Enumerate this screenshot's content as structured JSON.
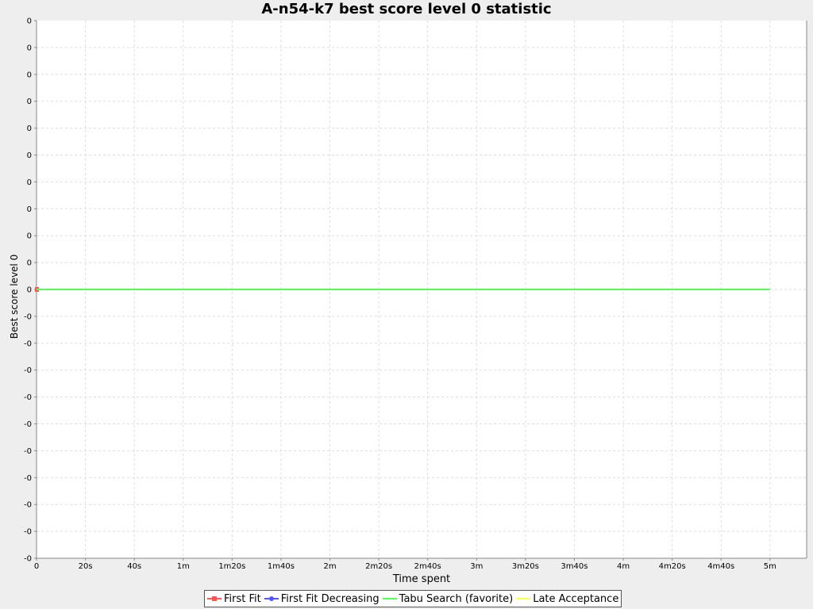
{
  "chart_data": {
    "type": "line",
    "title": "A-n54-k7 best score level 0 statistic",
    "xlabel": "Time spent",
    "ylabel": "Best score level 0",
    "x_ticks": [
      {
        "value": 0,
        "label": "0"
      },
      {
        "value": 20,
        "label": "20s"
      },
      {
        "value": 40,
        "label": "40s"
      },
      {
        "value": 60,
        "label": "1m"
      },
      {
        "value": 80,
        "label": "1m20s"
      },
      {
        "value": 100,
        "label": "1m40s"
      },
      {
        "value": 120,
        "label": "2m"
      },
      {
        "value": 140,
        "label": "2m20s"
      },
      {
        "value": 160,
        "label": "2m40s"
      },
      {
        "value": 180,
        "label": "3m"
      },
      {
        "value": 200,
        "label": "3m20s"
      },
      {
        "value": 220,
        "label": "3m40s"
      },
      {
        "value": 240,
        "label": "4m"
      },
      {
        "value": 260,
        "label": "4m20s"
      },
      {
        "value": 280,
        "label": "4m40s"
      },
      {
        "value": 300,
        "label": "5m"
      }
    ],
    "y_tick_labels": [
      "0",
      "0",
      "0",
      "0",
      "0",
      "0",
      "0",
      "0",
      "0",
      "0",
      "0",
      "-0",
      "-0",
      "-0",
      "-0",
      "-0",
      "-0",
      "-0",
      "-0",
      "-0",
      "-0"
    ],
    "xlim": [
      0,
      315
    ],
    "ylim": [
      -1,
      1
    ],
    "grid": true,
    "legend_position": "bottom",
    "series": [
      {
        "name": "First Fit",
        "color": "#ff5555",
        "marker": "square",
        "x": [
          0
        ],
        "y": [
          0
        ]
      },
      {
        "name": "First Fit Decreasing",
        "color": "#5555ff",
        "marker": "circle",
        "x": [],
        "y": []
      },
      {
        "name": "Tabu Search (favorite)",
        "color": "#55ff55",
        "marker": "none",
        "x": [
          0,
          300
        ],
        "y": [
          0,
          0
        ]
      },
      {
        "name": "Late Acceptance",
        "color": "#ffff55",
        "marker": "none",
        "x": [],
        "y": []
      }
    ]
  }
}
